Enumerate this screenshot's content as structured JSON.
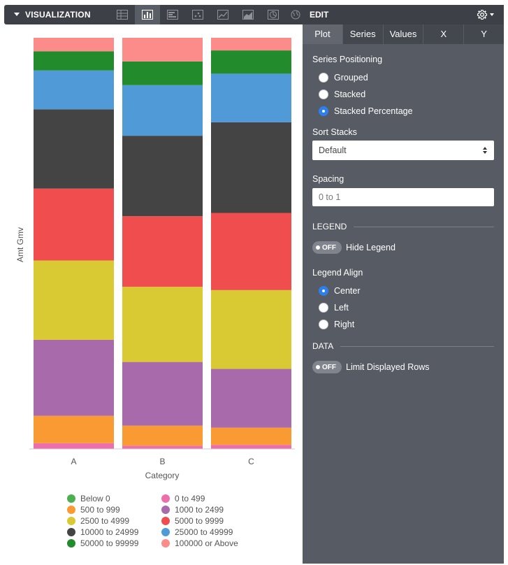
{
  "toolbar": {
    "title": "VISUALIZATION",
    "buttons": [
      "table-icon",
      "bar-chart-icon",
      "row-chart-icon",
      "scatter-icon",
      "line-chart-icon",
      "area-chart-icon",
      "pie-chart-icon",
      "map-icon"
    ]
  },
  "panel": {
    "title": "EDIT",
    "tabs": [
      "Plot",
      "Series",
      "Values",
      "X",
      "Y"
    ],
    "series_positioning_label": "Series Positioning",
    "series_options": [
      "Grouped",
      "Stacked",
      "Stacked Percentage"
    ],
    "sort_stacks_label": "Sort Stacks",
    "sort_stacks_value": "Default",
    "spacing_label": "Spacing",
    "spacing_placeholder": "0 to 1",
    "legend_section": "LEGEND",
    "hide_legend_toggle": "OFF",
    "hide_legend_label": "Hide Legend",
    "legend_align_label": "Legend Align",
    "legend_align_options": [
      "Center",
      "Left",
      "Right"
    ],
    "data_section": "DATA",
    "limit_rows_toggle": "OFF",
    "limit_rows_label": "Limit Displayed Rows"
  },
  "chart_data": {
    "type": "bar",
    "stacked": "percentage",
    "xlabel": "Category",
    "ylabel": "Amt Gmv",
    "categories": [
      "A",
      "B",
      "C"
    ],
    "series": [
      {
        "name": "Below 0",
        "color": "#4caf50",
        "values": [
          0,
          0,
          0
        ]
      },
      {
        "name": "0 to 499",
        "color": "#ec6fac",
        "values": [
          1.4,
          0.8,
          1.0
        ]
      },
      {
        "name": "500 to 999",
        "color": "#f99b32",
        "values": [
          6.7,
          4.9,
          4.2
        ]
      },
      {
        "name": "1000 to 2499",
        "color": "#a86aaa",
        "values": [
          18.6,
          15.6,
          14.4
        ]
      },
      {
        "name": "2500 to 4999",
        "color": "#d9ca33",
        "values": [
          19.4,
          18.4,
          19.3
        ]
      },
      {
        "name": "5000 to 9999",
        "color": "#f04e4e",
        "values": [
          17.6,
          17.3,
          18.9
        ]
      },
      {
        "name": "10000 to 24999",
        "color": "#444444",
        "values": [
          19.4,
          19.7,
          22.2
        ]
      },
      {
        "name": "25000 to 49999",
        "color": "#519ad8",
        "values": [
          9.5,
          12.4,
          11.9
        ]
      },
      {
        "name": "50000 to 99999",
        "color": "#228b2c",
        "values": [
          4.7,
          5.8,
          5.7
        ]
      },
      {
        "name": "100000 or Above",
        "color": "#fb8c89",
        "values": [
          3.3,
          5.8,
          3.1
        ]
      }
    ]
  }
}
